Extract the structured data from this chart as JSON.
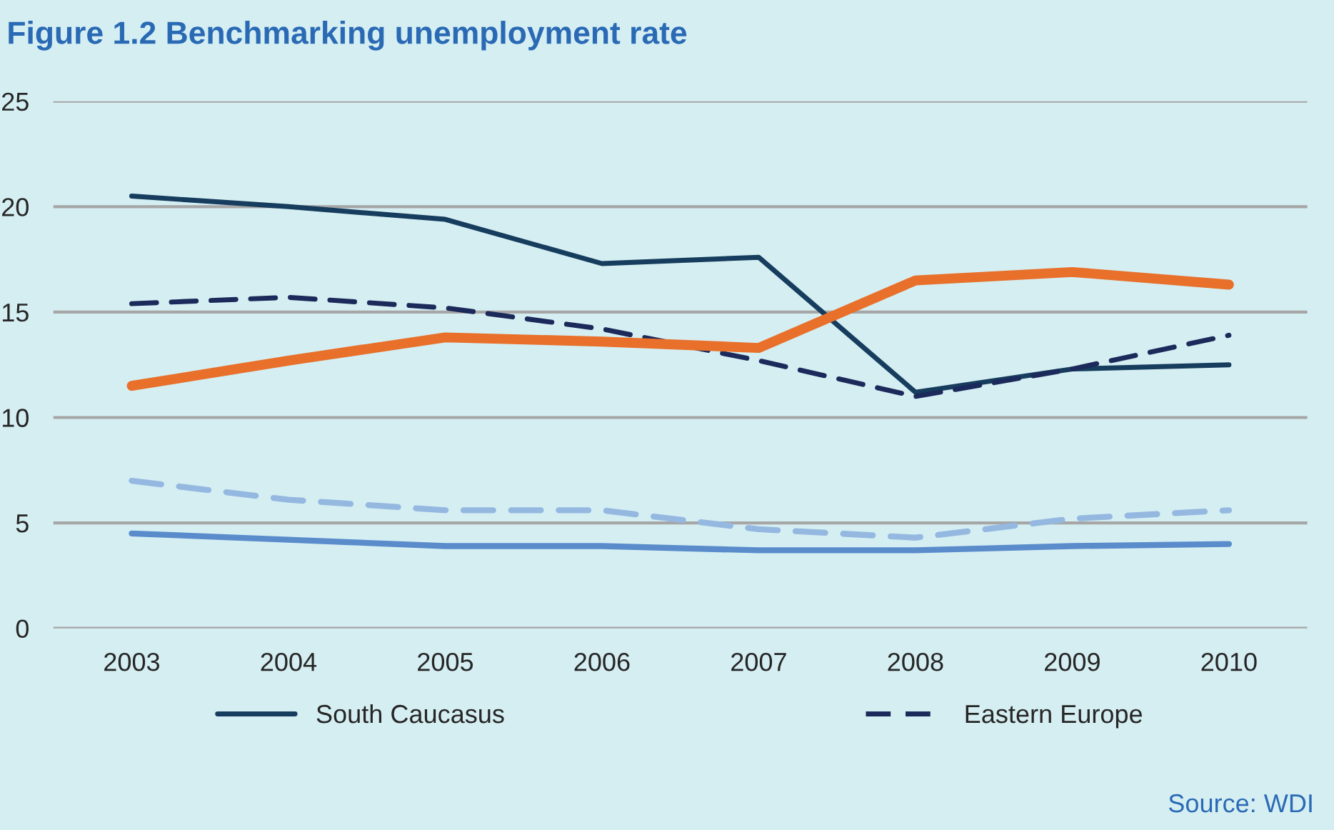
{
  "chart_data": {
    "type": "line",
    "title": "Figure 1.2 Benchmarking unemployment rate",
    "categories": [
      "2003",
      "2004",
      "2005",
      "2006",
      "2007",
      "2008",
      "2009",
      "2010"
    ],
    "series": [
      {
        "name": "South Caucasus",
        "color": "#173d5e",
        "line_style": "solid",
        "values": [
          20.5,
          20.0,
          19.4,
          17.3,
          17.6,
          11.2,
          12.3,
          12.5
        ]
      },
      {
        "name": "Eastern Europe",
        "color": "#1b2a5a",
        "line_style": "dashed",
        "values": [
          15.4,
          15.7,
          15.2,
          14.2,
          12.7,
          11.0,
          12.3,
          13.9
        ]
      },
      {
        "color": "#e8702a",
        "line_style": "solid",
        "values": [
          11.5,
          12.7,
          13.8,
          13.6,
          13.3,
          16.5,
          16.9,
          16.3
        ]
      },
      {
        "color": "#94b8e0",
        "line_style": "dashed",
        "values": [
          7.0,
          6.1,
          5.6,
          5.6,
          4.7,
          4.3,
          5.2,
          5.6
        ]
      },
      {
        "color": "#5a8ccc",
        "line_style": "solid",
        "values": [
          4.5,
          4.2,
          3.9,
          3.9,
          3.7,
          3.7,
          3.9,
          4.0
        ]
      }
    ],
    "ylim": [
      0,
      25
    ],
    "yticks": [
      0,
      5,
      10,
      15,
      20,
      25
    ],
    "grid": "y",
    "legend": "bottom",
    "annotations": [
      "Source: WDI"
    ]
  }
}
